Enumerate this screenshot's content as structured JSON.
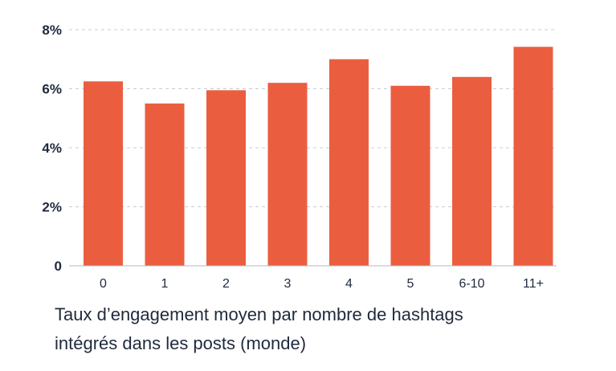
{
  "chart_data": {
    "type": "bar",
    "categories": [
      "0",
      "1",
      "2",
      "3",
      "4",
      "5",
      "6-10",
      "11+"
    ],
    "values": [
      6.25,
      5.5,
      5.95,
      6.2,
      7.0,
      6.1,
      6.4,
      7.42
    ],
    "ylim": [
      0,
      8
    ],
    "yticks": [
      0,
      2,
      4,
      6,
      8
    ],
    "ytick_labels": [
      "0",
      "2%",
      "4%",
      "6%",
      "8%"
    ],
    "grid": true,
    "bar_color": "#ea5e3f",
    "grid_color": "#c9cdd2",
    "axis_color": "#b5bac0",
    "title_lines": [
      "Taux d’engagement moyen par nombre de hashtags",
      "intégrés dans les posts (monde)"
    ],
    "xlabel": "",
    "ylabel": ""
  }
}
